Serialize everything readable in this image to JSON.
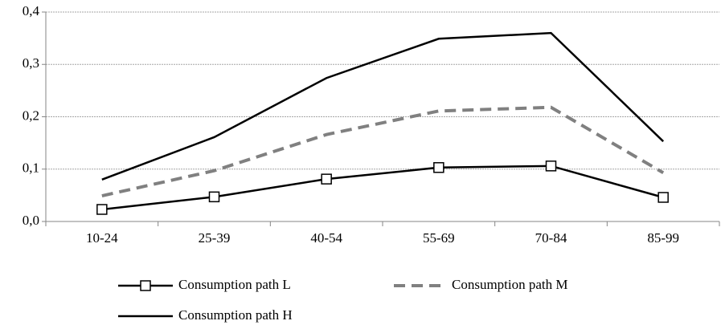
{
  "chart_data": {
    "type": "line",
    "categories": [
      "10-24",
      "25-39",
      "40-54",
      "55-69",
      "70-84",
      "85-99"
    ],
    "series": [
      {
        "name": "Consumption path L",
        "color": "#000000",
        "style": "solid",
        "marker": "square",
        "values": [
          0.023,
          0.047,
          0.081,
          0.103,
          0.106,
          0.046
        ]
      },
      {
        "name": "Consumption path M",
        "color": "#808080",
        "style": "dashed",
        "marker": "none",
        "values": [
          0.049,
          0.097,
          0.166,
          0.211,
          0.218,
          0.093
        ]
      },
      {
        "name": "Consumption path H",
        "color": "#000000",
        "style": "solid",
        "marker": "none",
        "values": [
          0.08,
          0.161,
          0.274,
          0.349,
          0.36,
          0.153
        ]
      }
    ],
    "ylim": [
      0,
      0.4
    ],
    "yticks": [
      {
        "value": 0,
        "label": "0,0"
      },
      {
        "value": 0.1,
        "label": "0,1"
      },
      {
        "value": 0.2,
        "label": "0,2"
      },
      {
        "value": 0.3,
        "label": "0,3"
      },
      {
        "value": 0.4,
        "label": "0,4"
      }
    ],
    "grid": true,
    "legend": "bottom"
  }
}
